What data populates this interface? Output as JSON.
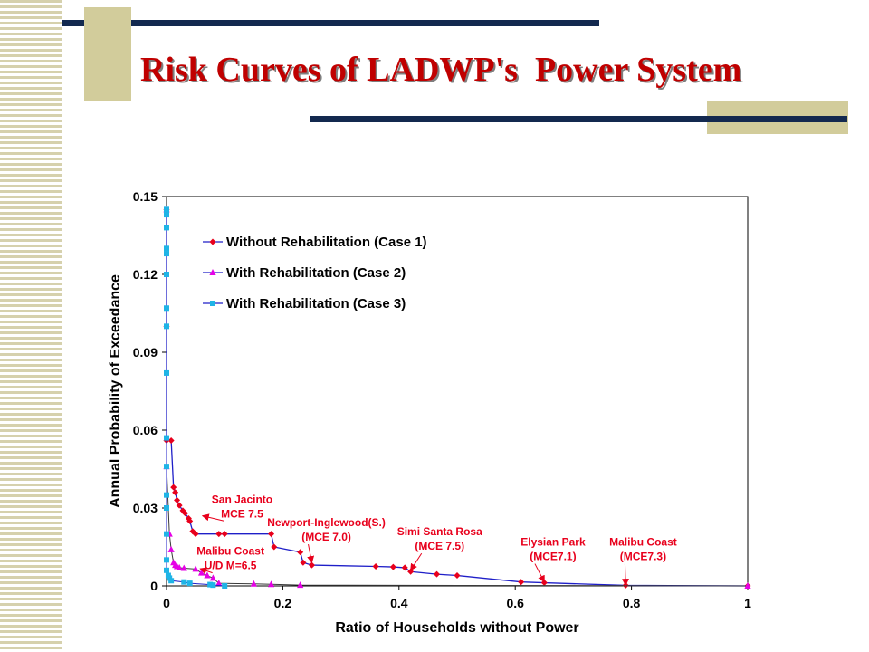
{
  "slide": {
    "title": "Risk Curves of LADWP's  Power System"
  },
  "chart_data": {
    "type": "line",
    "xlabel": "Ratio of Households without Power",
    "ylabel": "Annual Probability of Exceedance",
    "xlim": [
      0,
      1
    ],
    "ylim": [
      0,
      0.15
    ],
    "xticks": [
      "0",
      "0.2",
      "0.4",
      "0.6",
      "0.8",
      "1"
    ],
    "yticks": [
      "0",
      "0.03",
      "0.06",
      "0.09",
      "0.12",
      "0.15"
    ],
    "grid": false,
    "legend_position": "top-left",
    "series": [
      {
        "name": "Without Rehabilitation (Case 1)",
        "color": "#e8001c",
        "marker": "diamond",
        "x": [
          0,
          0,
          0,
          0.008,
          0.012,
          0.015,
          0.018,
          0.022,
          0.028,
          0.032,
          0.038,
          0.04,
          0.045,
          0.05,
          0.09,
          0.1,
          0.18,
          0.185,
          0.23,
          0.235,
          0.25,
          0.36,
          0.39,
          0.41,
          0.42,
          0.465,
          0.5,
          0.61,
          0.65,
          0.79,
          1.0
        ],
        "y": [
          0.145,
          0.1,
          0.056,
          0.056,
          0.038,
          0.036,
          0.033,
          0.031,
          0.029,
          0.028,
          0.026,
          0.025,
          0.021,
          0.02,
          0.02,
          0.02,
          0.02,
          0.015,
          0.013,
          0.009,
          0.008,
          0.0075,
          0.0073,
          0.007,
          0.0055,
          0.0045,
          0.004,
          0.0015,
          0.0012,
          0.0002,
          0.0
        ]
      },
      {
        "name": "With Rehabilitation (Case 2)",
        "color": "#e600e6",
        "marker": "triangle",
        "x": [
          0,
          0,
          0.005,
          0.008,
          0.012,
          0.015,
          0.018,
          0.022,
          0.03,
          0.05,
          0.06,
          0.07,
          0.08,
          0.09,
          0.15,
          0.18,
          0.23,
          1.0
        ],
        "y": [
          0.145,
          0.046,
          0.02,
          0.014,
          0.009,
          0.008,
          0.0075,
          0.007,
          0.0068,
          0.0065,
          0.005,
          0.004,
          0.003,
          0.001,
          0.0008,
          0.0006,
          0.0003,
          0.0
        ]
      },
      {
        "name": "With Rehabilitation (Case 3)",
        "color": "#1fb4e6",
        "marker": "square",
        "x": [
          0,
          0,
          0,
          0,
          0,
          0,
          0,
          0,
          0,
          0,
          0,
          0,
          0,
          0,
          0,
          0,
          0.003,
          0.005,
          0.008,
          0.03,
          0.04,
          0.075,
          0.08,
          0.1
        ],
        "y": [
          0.145,
          0.143,
          0.138,
          0.13,
          0.128,
          0.12,
          0.107,
          0.1,
          0.082,
          0.057,
          0.046,
          0.035,
          0.03,
          0.02,
          0.01,
          0.006,
          0.004,
          0.003,
          0.002,
          0.0015,
          0.001,
          0.0005,
          0.0003,
          0.0
        ]
      }
    ],
    "annotations": [
      {
        "lines": [
          "San Jacinto",
          "MCE 7.5"
        ],
        "x": 0.13,
        "y": 0.032,
        "arrow_to": [
          0.062,
          0.027
        ]
      },
      {
        "lines": [
          "Malibu Coast",
          "U/D M=6.5"
        ],
        "x": 0.11,
        "y": 0.012,
        "arrow_to": [
          0.058,
          0.0066
        ]
      },
      {
        "lines": [
          "Newport-Inglewood(S.)",
          "(MCE 7.0)"
        ],
        "x": 0.275,
        "y": 0.023,
        "arrow_to": [
          0.25,
          0.009
        ]
      },
      {
        "lines": [
          "Simi Santa Rosa",
          "(MCE 7.5)"
        ],
        "x": 0.47,
        "y": 0.0195,
        "arrow_to": [
          0.42,
          0.006
        ]
      },
      {
        "lines": [
          "Elysian Park",
          "(MCE7.1)"
        ],
        "x": 0.665,
        "y": 0.0155,
        "arrow_to": [
          0.65,
          0.0015
        ]
      },
      {
        "lines": [
          "Malibu Coast",
          "(MCE7.3)"
        ],
        "x": 0.82,
        "y": 0.0155,
        "arrow_to": [
          0.79,
          0.0003
        ]
      }
    ]
  }
}
